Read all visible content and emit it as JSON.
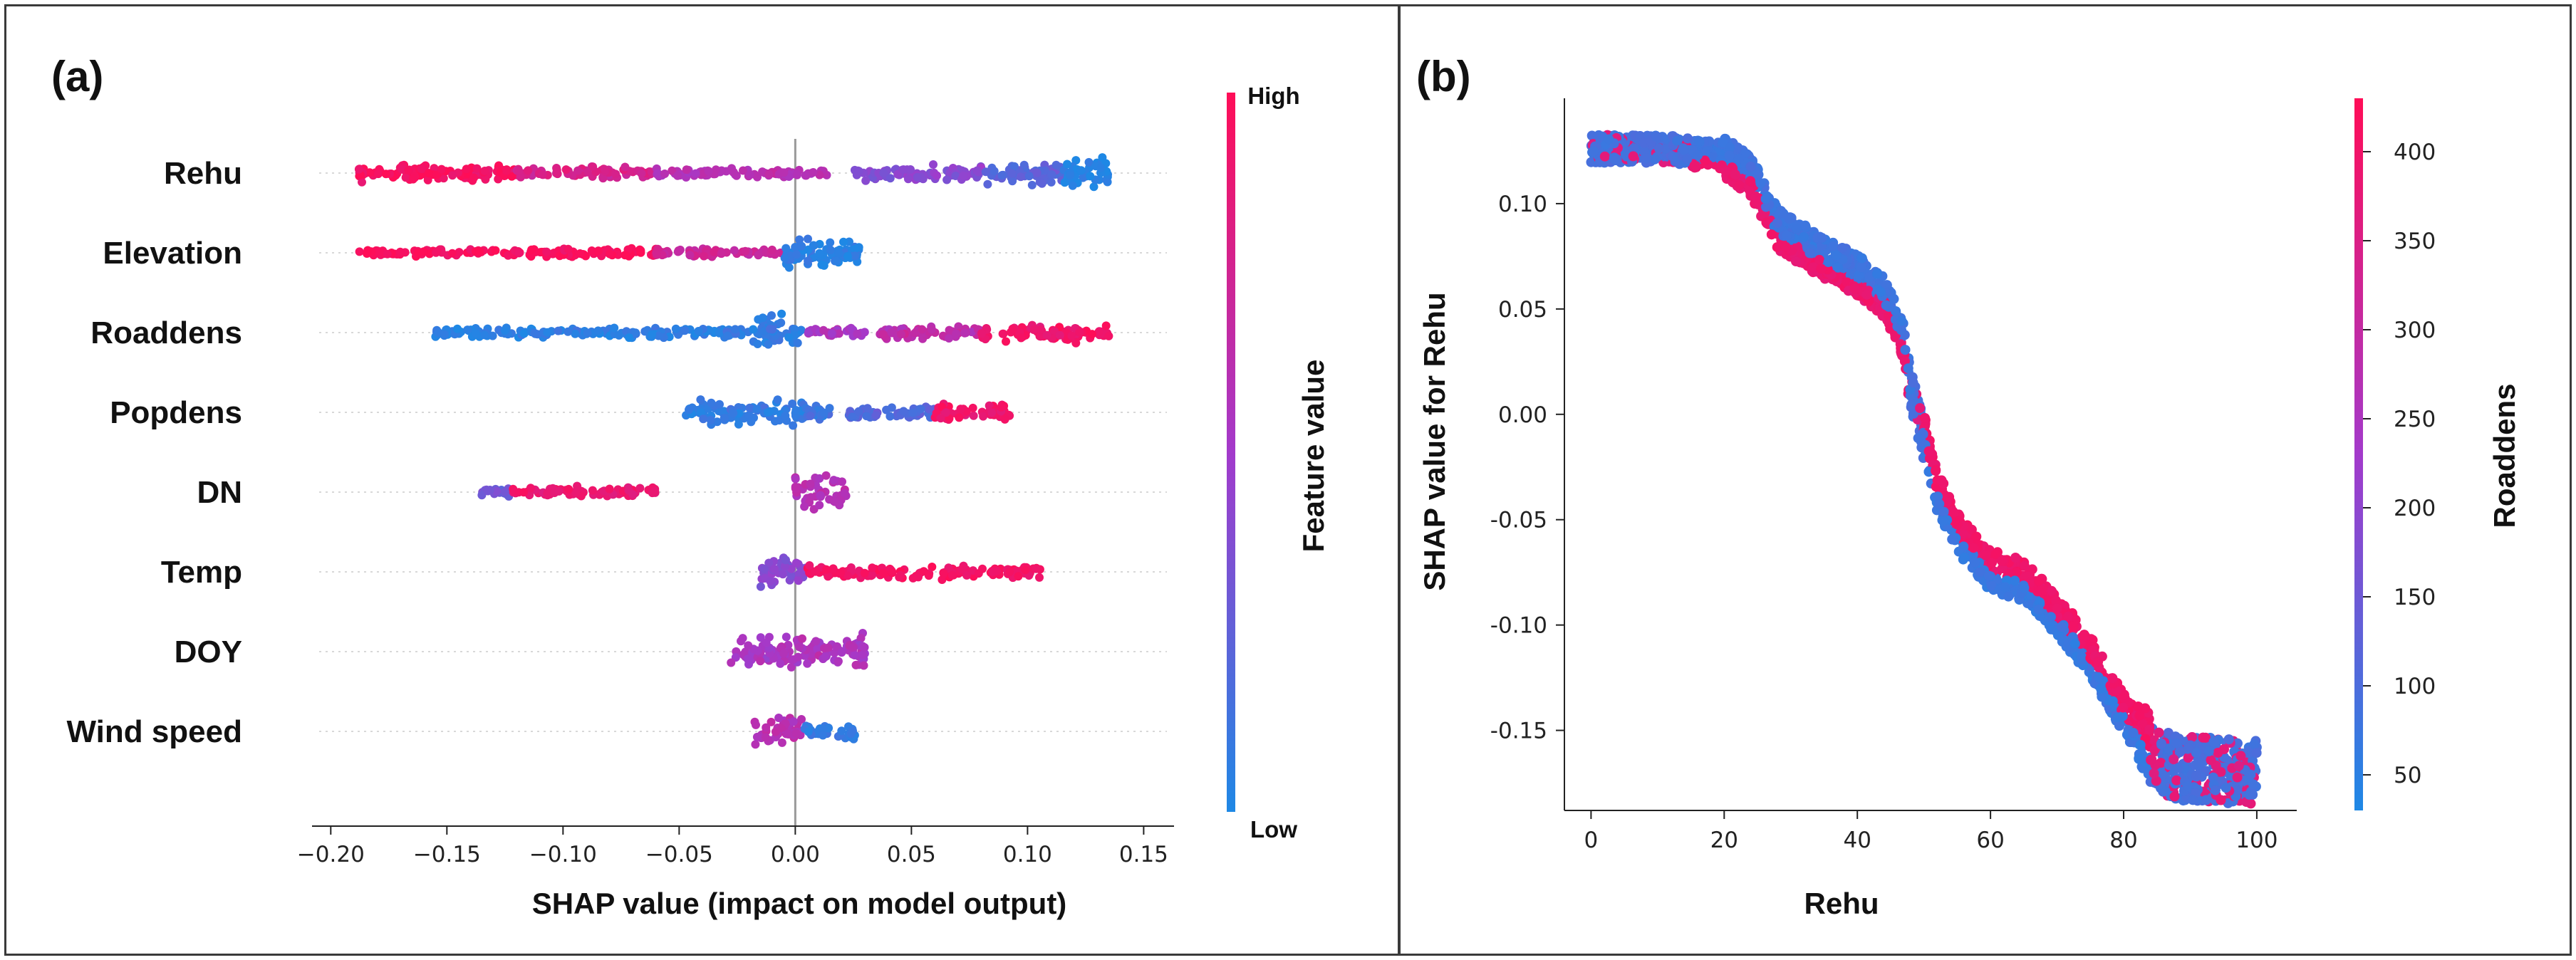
{
  "colors": {
    "high": "#ff0d57",
    "mid": "#a33acb",
    "low": "#1e88e5",
    "zero_line": "#999999",
    "grid": "#d8d8d8"
  },
  "chart_data": [
    {
      "panel_label": "(a)",
      "type": "scatter",
      "subtype": "shap-beeswarm",
      "title": "",
      "xlabel": "SHAP value (impact on model output)",
      "ylabel": "",
      "xlim": [
        -0.205,
        0.16
      ],
      "xticks": [
        -0.2,
        -0.15,
        -0.1,
        -0.05,
        0.0,
        0.05,
        0.1,
        0.15
      ],
      "xtick_labels": [
        "−0.20",
        "−0.15",
        "−0.10",
        "−0.05",
        "0.00",
        "0.05",
        "0.10",
        "0.15"
      ],
      "categories": [
        "Rehu",
        "Elevation",
        "Roaddens",
        "Popdens",
        "DN",
        "Temp",
        "DOY",
        "Wind speed"
      ],
      "colorbar": {
        "label": "Feature value",
        "high_label": "High",
        "low_label": "Low"
      },
      "grid": "horizontal dotted",
      "series": [
        {
          "feature": "Rehu",
          "segments": [
            {
              "x": [
                -0.188,
                -0.12
              ],
              "level": 0.95,
              "spread": 0.55
            },
            {
              "x": [
                -0.12,
                -0.06
              ],
              "level": 0.78,
              "spread": 0.35
            },
            {
              "x": [
                -0.06,
                0.015
              ],
              "level": 0.6,
              "spread": 0.3
            },
            {
              "x": [
                0.025,
                0.08
              ],
              "level": 0.4,
              "spread": 0.5
            },
            {
              "x": [
                0.08,
                0.115
              ],
              "level": 0.22,
              "spread": 0.7
            },
            {
              "x": [
                0.115,
                0.135
              ],
              "level": 0.03,
              "spread": 1.0
            }
          ]
        },
        {
          "feature": "Elevation",
          "segments": [
            {
              "x": [
                -0.188,
                -0.06
              ],
              "level": 0.97,
              "spread": 0.25
            },
            {
              "x": [
                -0.06,
                -0.005
              ],
              "level": 0.72,
              "spread": 0.3
            },
            {
              "x": [
                -0.005,
                0.028
              ],
              "level": 0.05,
              "spread": 1.0
            }
          ]
        },
        {
          "feature": "Roaddens",
          "segments": [
            {
              "x": [
                -0.155,
                -0.02
              ],
              "level": 0.06,
              "spread": 0.3
            },
            {
              "x": [
                -0.02,
                0.003
              ],
              "level": 0.08,
              "spread": 1.0
            },
            {
              "x": [
                0.005,
                0.03
              ],
              "level": 0.55,
              "spread": 0.3
            },
            {
              "x": [
                0.035,
                0.08
              ],
              "level": 0.65,
              "spread": 0.4
            },
            {
              "x": [
                0.08,
                0.135
              ],
              "level": 0.92,
              "spread": 0.55
            }
          ]
        },
        {
          "feature": "Popdens",
          "segments": [
            {
              "x": [
                -0.047,
                0.004
              ],
              "level": 0.08,
              "spread": 0.75
            },
            {
              "x": [
                0.004,
                0.015
              ],
              "level": 0.12,
              "spread": 0.4
            },
            {
              "x": [
                0.023,
                0.06
              ],
              "level": 0.2,
              "spread": 0.45
            },
            {
              "x": [
                0.06,
                0.093
              ],
              "level": 0.92,
              "spread": 0.55
            }
          ]
        },
        {
          "feature": "DN",
          "segments": [
            {
              "x": [
                -0.135,
                -0.122
              ],
              "level": 0.3,
              "spread": 0.25
            },
            {
              "x": [
                -0.122,
                -0.06
              ],
              "level": 0.9,
              "spread": 0.35
            },
            {
              "x": [
                0.0,
                0.022
              ],
              "level": 0.6,
              "spread": 1.0
            }
          ]
        },
        {
          "feature": "Temp",
          "segments": [
            {
              "x": [
                -0.015,
                0.005
              ],
              "level": 0.4,
              "spread": 1.0
            },
            {
              "x": [
                0.005,
                0.108
              ],
              "level": 0.95,
              "spread": 0.4
            }
          ]
        },
        {
          "feature": "DOY",
          "segments": [
            {
              "x": [
                -0.028,
                0.03
              ],
              "level": 0.55,
              "spread": 1.0
            }
          ]
        },
        {
          "feature": "Wind speed",
          "segments": [
            {
              "x": [
                -0.018,
                0.004
              ],
              "level": 0.6,
              "spread": 1.0
            },
            {
              "x": [
                0.004,
                0.026
              ],
              "level": 0.08,
              "spread": 0.45
            }
          ]
        }
      ]
    },
    {
      "panel_label": "(b)",
      "type": "scatter",
      "subtype": "shap-dependence",
      "title": "",
      "xlabel": "Rehu",
      "ylabel": "SHAP value for Rehu",
      "xlim": [
        -4,
        106
      ],
      "ylim": [
        -0.188,
        0.15
      ],
      "xticks": [
        0,
        20,
        40,
        60,
        80,
        100
      ],
      "yticks": [
        -0.15,
        -0.1,
        -0.05,
        0.0,
        0.05,
        0.1
      ],
      "ytick_labels": [
        "-0.15",
        "-0.10",
        "-0.05",
        "0.00",
        "0.05",
        "0.10"
      ],
      "colorbar": {
        "label": "Roaddens",
        "range": [
          30,
          430
        ],
        "ticks": [
          50,
          100,
          150,
          200,
          250,
          300,
          350,
          400
        ]
      },
      "trend": [
        {
          "x": 0,
          "y": 0.126
        },
        {
          "x": 10,
          "y": 0.126
        },
        {
          "x": 20,
          "y": 0.124
        },
        {
          "x": 24,
          "y": 0.115
        },
        {
          "x": 28,
          "y": 0.09
        },
        {
          "x": 34,
          "y": 0.078
        },
        {
          "x": 40,
          "y": 0.068
        },
        {
          "x": 44,
          "y": 0.058
        },
        {
          "x": 47,
          "y": 0.036
        },
        {
          "x": 48,
          "y": 0.012
        },
        {
          "x": 50,
          "y": -0.012
        },
        {
          "x": 52,
          "y": -0.04
        },
        {
          "x": 56,
          "y": -0.063
        },
        {
          "x": 60,
          "y": -0.077
        },
        {
          "x": 65,
          "y": -0.082
        },
        {
          "x": 70,
          "y": -0.098
        },
        {
          "x": 75,
          "y": -0.118
        },
        {
          "x": 80,
          "y": -0.145
        },
        {
          "x": 84,
          "y": -0.162
        },
        {
          "x": 88,
          "y": -0.168
        },
        {
          "x": 100,
          "y": -0.17
        }
      ]
    }
  ]
}
